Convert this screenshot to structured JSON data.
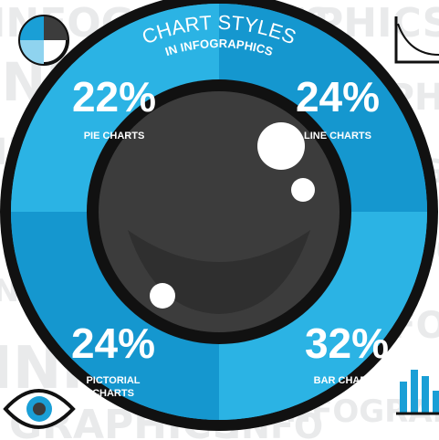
{
  "background_words": [
    "INFO",
    "GRAPHICS",
    "INFOGRAPHICS"
  ],
  "colors": {
    "ring_light": "#2bb3e4",
    "ring_dark": "#1597cf",
    "rim": "#111111",
    "pupil": "#3c3c3c",
    "background_text": "#e9eaeb",
    "icon": "#1a9fd6"
  },
  "icons": {
    "top_left": "pie-chart-icon",
    "top_right": "line-chart-icon",
    "bottom_left": "eye-icon",
    "bottom_right": "bar-chart-icon"
  },
  "chart_data": {
    "type": "pie",
    "title": "CHART STYLES",
    "subtitle": "IN INFOGRAPHICS",
    "categories": [
      "PIE CHARTS",
      "LINE CHARTS",
      "BAR CHARTS",
      "PICTORIAL CHARTS"
    ],
    "values": [
      22,
      24,
      32,
      24
    ],
    "value_labels": [
      "22%",
      "24%",
      "32%",
      "24%"
    ],
    "quadrants": [
      "top-left",
      "top-right",
      "bottom-right",
      "bottom-left"
    ],
    "legend": "none"
  }
}
